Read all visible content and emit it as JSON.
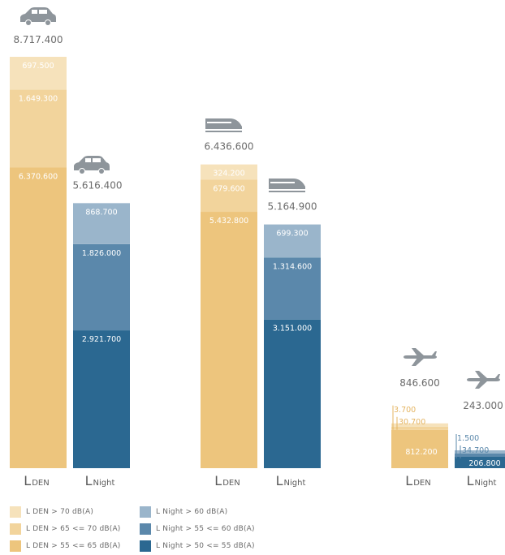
{
  "chart_data": {
    "type": "bar",
    "stacked": true,
    "groups": [
      {
        "transport": "road",
        "icon": "car-icon",
        "bars": [
          {
            "label_main": "L",
            "label_sub": "DEN",
            "total": "8.717.400",
            "segments": [
              {
                "value": 6370600,
                "label": "6.370.600",
                "color": "#edc57d"
              },
              {
                "value": 1649300,
                "label": "1.649.300",
                "color": "#f2d49c"
              },
              {
                "value": 697500,
                "label": "697.500",
                "color": "#f6e2bb"
              }
            ]
          },
          {
            "label_main": "L",
            "label_sub": "Night",
            "total": "5.616.400",
            "segments": [
              {
                "value": 2921700,
                "label": "2.921.700",
                "color": "#2b6891"
              },
              {
                "value": 1826000,
                "label": "1.826.000",
                "color": "#5b88ab"
              },
              {
                "value": 868700,
                "label": "868.700",
                "color": "#9ab5cb"
              }
            ]
          }
        ]
      },
      {
        "transport": "rail",
        "icon": "train-icon",
        "bars": [
          {
            "label_main": "L",
            "label_sub": "DEN",
            "total": "6.436.600",
            "segments": [
              {
                "value": 5432800,
                "label": "5.432.800",
                "color": "#edc57d"
              },
              {
                "value": 679600,
                "label": "679.600",
                "color": "#f2d49c"
              },
              {
                "value": 324200,
                "label": "324.200",
                "color": "#f6e2bb"
              }
            ]
          },
          {
            "label_main": "L",
            "label_sub": "Night",
            "total": "5.164.900",
            "segments": [
              {
                "value": 3151000,
                "label": "3.151.000",
                "color": "#2b6891"
              },
              {
                "value": 1314600,
                "label": "1.314.600",
                "color": "#5b88ab"
              },
              {
                "value": 699300,
                "label": "699.300",
                "color": "#9ab5cb"
              }
            ]
          }
        ]
      },
      {
        "transport": "air",
        "icon": "airplane-icon",
        "bars": [
          {
            "label_main": "L",
            "label_sub": "DEN",
            "total": "846.600",
            "segments": [
              {
                "value": 812200,
                "label": "812.200",
                "color": "#edc57d"
              },
              {
                "value": 30700,
                "label": "30.700",
                "color": "#f2d49c"
              },
              {
                "value": 3700,
                "label": "3.700",
                "color": "#f6e2bb"
              }
            ]
          },
          {
            "label_main": "L",
            "label_sub": "Night",
            "total": "243.000",
            "segments": [
              {
                "value": 206800,
                "label": "206.800",
                "color": "#2b6891"
              },
              {
                "value": 34700,
                "label": "34.700",
                "color": "#5b88ab"
              },
              {
                "value": 1500,
                "label": "1.500",
                "color": "#9ab5cb"
              }
            ]
          }
        ]
      }
    ],
    "legend": [
      {
        "label": "L DEN > 70 dB(A)",
        "color": "#f6e2bb"
      },
      {
        "label": "L DEN > 65 <= 70 dB(A)",
        "color": "#f2d49c"
      },
      {
        "label": "L DEN > 55 <= 65 dB(A)",
        "color": "#edc57d"
      },
      {
        "label": "L Night > 60 dB(A)",
        "color": "#9ab5cb"
      },
      {
        "label": "L Night > 55 <= 60 dB(A)",
        "color": "#5b88ab"
      },
      {
        "label": "L Night > 50 <= 55 dB(A)",
        "color": "#2b6891"
      }
    ],
    "colors": {
      "total_text": "#6b6b6b",
      "icon": "#8e959b",
      "axis_label": "#5a5a5a"
    }
  }
}
